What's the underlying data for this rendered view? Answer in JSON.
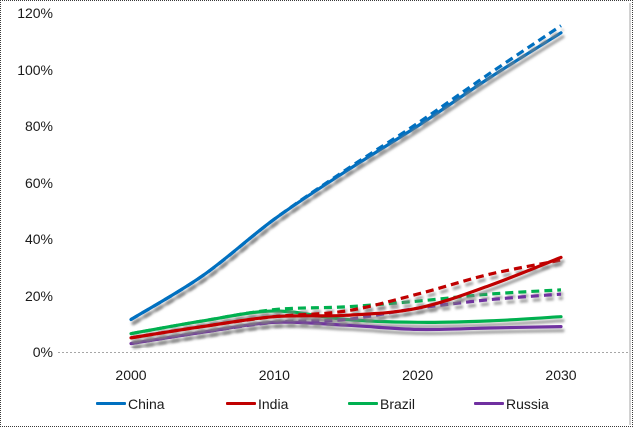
{
  "chart_data": {
    "type": "line",
    "title": "",
    "xlabel": "",
    "ylabel": "",
    "x": [
      2000,
      2005,
      2010,
      2015,
      2020,
      2025,
      2030
    ],
    "xlim": [
      2000,
      2030
    ],
    "ylim": [
      0,
      120
    ],
    "x_ticks": [
      {
        "label": "2000",
        "value": 2000
      },
      {
        "label": "2010",
        "value": 2010
      },
      {
        "label": "2020",
        "value": 2020
      },
      {
        "label": "2030",
        "value": 2030
      }
    ],
    "y_ticks": [
      {
        "label": "0%",
        "value": 0
      },
      {
        "label": "20%",
        "value": 20
      },
      {
        "label": "40%",
        "value": 40
      },
      {
        "label": "60%",
        "value": 60
      },
      {
        "label": "80%",
        "value": 80
      },
      {
        "label": "100%",
        "value": 100
      },
      {
        "label": "120%",
        "value": 120
      }
    ],
    "grid": "zero-axis-line-only",
    "legend_position": "bottom",
    "series": [
      {
        "name": "China solid",
        "country": "China",
        "style": "solid",
        "color": "#0070C0",
        "values": [
          11.5,
          27,
          47,
          64,
          80,
          97,
          113
        ]
      },
      {
        "name": "China dashed",
        "country": "China",
        "style": "dashed",
        "color": "#0070C0",
        "values": [
          11.5,
          27,
          47,
          64.5,
          81,
          98.5,
          115.5
        ]
      },
      {
        "name": "India solid",
        "country": "India",
        "style": "solid",
        "color": "#C00000",
        "values": [
          5,
          9,
          12.5,
          13,
          15.5,
          23.5,
          33.5
        ]
      },
      {
        "name": "India dashed",
        "country": "India",
        "style": "dashed",
        "color": "#C00000",
        "values": [
          5,
          9,
          12.5,
          14.5,
          20.5,
          27.5,
          32.5
        ]
      },
      {
        "name": "Brazil solid",
        "country": "Brazil",
        "style": "solid",
        "color": "#00B050",
        "values": [
          6.5,
          11,
          14.5,
          11.5,
          10.5,
          11,
          12.5
        ]
      },
      {
        "name": "Brazil dashed",
        "country": "Brazil",
        "style": "dashed",
        "color": "#00B050",
        "values": [
          6.5,
          11,
          15,
          16,
          18,
          20.5,
          22
        ]
      },
      {
        "name": "Russia solid",
        "country": "Russia",
        "style": "solid",
        "color": "#7030A0",
        "values": [
          3,
          7,
          10.5,
          9.5,
          8,
          8.5,
          9
        ]
      },
      {
        "name": "Russia dashed",
        "country": "Russia",
        "style": "dashed",
        "color": "#7030A0",
        "values": [
          3,
          7,
          10.5,
          11.5,
          15.5,
          18.5,
          20.5
        ]
      }
    ]
  },
  "legend": {
    "items": [
      {
        "label": "China",
        "color": "#0070C0"
      },
      {
        "label": "India",
        "color": "#C00000"
      },
      {
        "label": "Brazil",
        "color": "#00B050"
      },
      {
        "label": "Russia",
        "color": "#7030A0"
      }
    ]
  },
  "colors": {
    "axis_line": "#A6A6A6",
    "plot_right_border": "#A6A6A6",
    "tick_text": "#1a1a1a",
    "shadow": "#808080"
  }
}
